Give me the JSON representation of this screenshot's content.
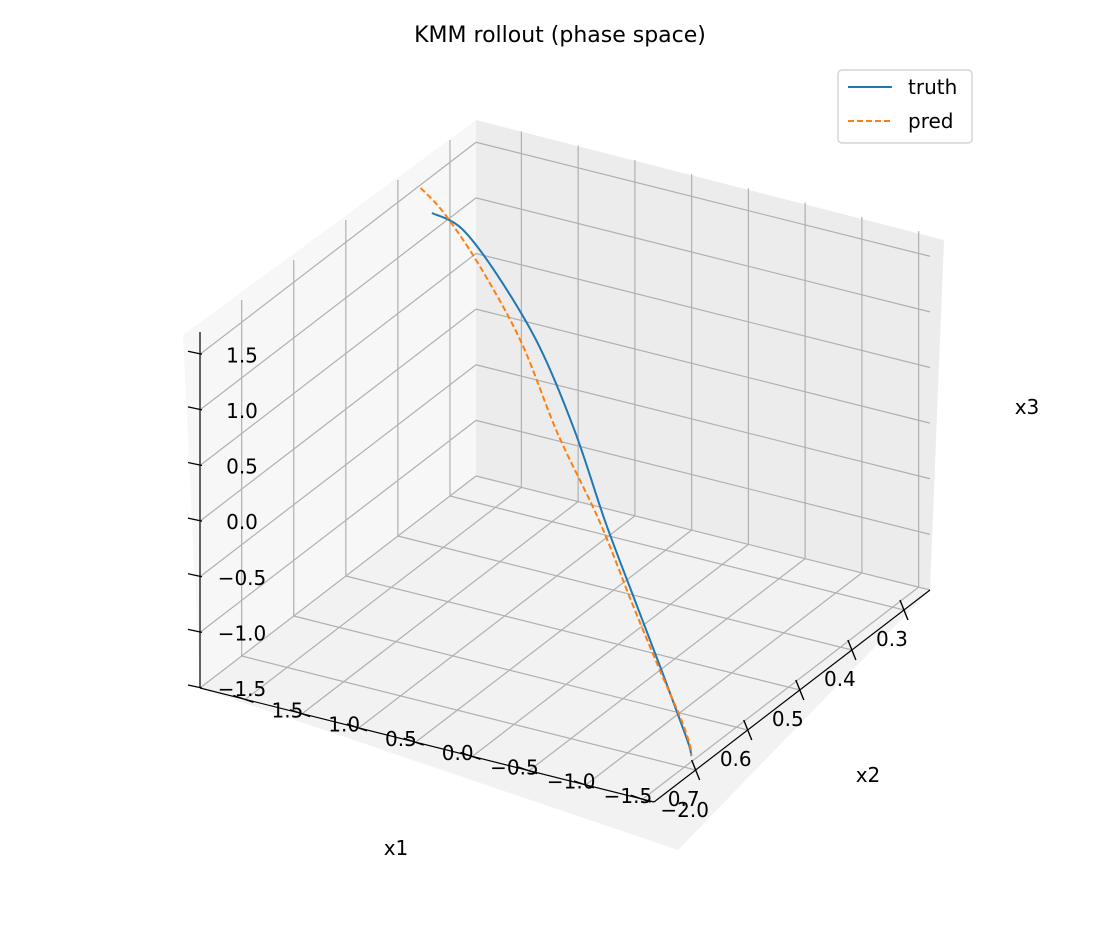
{
  "chart_data": {
    "type": "line",
    "projection": "3d",
    "title": "KMM rollout (phase space)",
    "xlabel": "x1",
    "ylabel": "x2",
    "zlabel": "x3",
    "xlim": [
      0.25,
      0.78
    ],
    "ylim": [
      -2.1,
      1.9
    ],
    "zlim": [
      -1.5,
      1.7
    ],
    "xticks": [
      0.3,
      0.4,
      0.5,
      0.6,
      0.7
    ],
    "yticks": [
      -2.0,
      -1.5,
      -1.0,
      -0.5,
      0.0,
      0.5,
      1.0,
      1.5
    ],
    "zticks": [
      -1.5,
      -1.0,
      -0.5,
      0.0,
      0.5,
      1.0,
      1.5
    ],
    "xtick_labels": [
      "0.3",
      "0.4",
      "0.5",
      "0.6",
      "0.7"
    ],
    "ytick_labels": [
      "−2.0",
      "−1.5",
      "−1.0",
      "−0.5",
      "0.0",
      "0.5",
      "1.0",
      "1.5"
    ],
    "ztick_labels": [
      "−1.5",
      "−1.0",
      "−0.5",
      "0.0",
      "0.5",
      "1.0",
      "1.5"
    ],
    "grid": true,
    "legend_position": "top-right",
    "series": [
      {
        "name": "truth",
        "color": "#1f77b4",
        "style": "solid",
        "x": [
          0.4,
          0.43,
          0.47,
          0.51,
          0.55,
          0.59,
          0.62,
          0.645,
          0.665,
          0.675,
          0.68
        ],
        "y": [
          1.6,
          1.2,
          0.7,
          0.15,
          -0.35,
          -0.8,
          -1.2,
          -1.55,
          -1.8,
          -1.93,
          -1.97
        ],
        "z": [
          1.48,
          1.55,
          1.4,
          1.05,
          0.55,
          0.0,
          -0.5,
          -0.95,
          -1.25,
          -1.42,
          -1.48
        ]
      },
      {
        "name": "pred",
        "color": "#ff7f0e",
        "style": "dashed",
        "x": [
          0.4,
          0.42,
          0.45,
          0.49,
          0.54,
          0.58,
          0.615,
          0.64,
          0.66,
          0.672,
          0.68
        ],
        "y": [
          1.7,
          1.4,
          0.95,
          0.4,
          -0.15,
          -0.7,
          -1.15,
          -1.5,
          -1.78,
          -1.92,
          -1.97
        ],
        "z": [
          1.68,
          1.6,
          1.35,
          0.95,
          0.45,
          -0.05,
          -0.55,
          -0.95,
          -1.25,
          -1.42,
          -1.48
        ]
      }
    ]
  }
}
